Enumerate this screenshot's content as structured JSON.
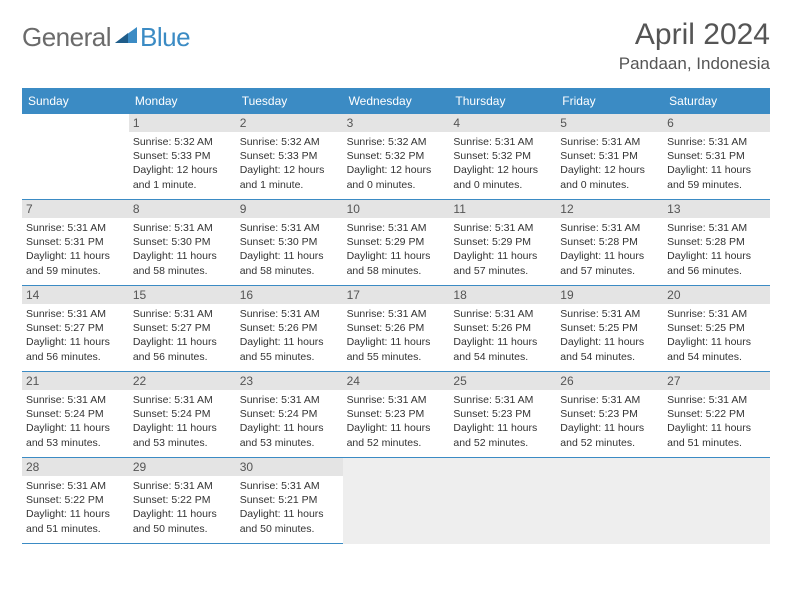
{
  "brand": {
    "text_general": "General",
    "text_blue": "Blue",
    "general_color": "#6b6b6b",
    "blue_color": "#3b8bc4",
    "triangle_color": "#3b8bc4"
  },
  "header": {
    "month_title": "April 2024",
    "location": "Pandaan, Indonesia",
    "title_color": "#555555"
  },
  "colors": {
    "header_bg": "#3b8bc4",
    "header_fg": "#ffffff",
    "daynum_bg": "#e4e4e4",
    "daynum_fg": "#555555",
    "border": "#3b8bc4",
    "blank_bottom_bg": "#eeeeee",
    "body_bg": "#ffffff",
    "text": "#333333"
  },
  "days_of_week": [
    "Sunday",
    "Monday",
    "Tuesday",
    "Wednesday",
    "Thursday",
    "Friday",
    "Saturday"
  ],
  "grid": {
    "leading_blanks": 1,
    "trailing_blanks": 4,
    "rows": 5,
    "cols": 7
  },
  "days": [
    {
      "n": "1",
      "sunrise": "Sunrise: 5:32 AM",
      "sunset": "Sunset: 5:33 PM",
      "daylight": "Daylight: 12 hours and 1 minute."
    },
    {
      "n": "2",
      "sunrise": "Sunrise: 5:32 AM",
      "sunset": "Sunset: 5:33 PM",
      "daylight": "Daylight: 12 hours and 1 minute."
    },
    {
      "n": "3",
      "sunrise": "Sunrise: 5:32 AM",
      "sunset": "Sunset: 5:32 PM",
      "daylight": "Daylight: 12 hours and 0 minutes."
    },
    {
      "n": "4",
      "sunrise": "Sunrise: 5:31 AM",
      "sunset": "Sunset: 5:32 PM",
      "daylight": "Daylight: 12 hours and 0 minutes."
    },
    {
      "n": "5",
      "sunrise": "Sunrise: 5:31 AM",
      "sunset": "Sunset: 5:31 PM",
      "daylight": "Daylight: 12 hours and 0 minutes."
    },
    {
      "n": "6",
      "sunrise": "Sunrise: 5:31 AM",
      "sunset": "Sunset: 5:31 PM",
      "daylight": "Daylight: 11 hours and 59 minutes."
    },
    {
      "n": "7",
      "sunrise": "Sunrise: 5:31 AM",
      "sunset": "Sunset: 5:31 PM",
      "daylight": "Daylight: 11 hours and 59 minutes."
    },
    {
      "n": "8",
      "sunrise": "Sunrise: 5:31 AM",
      "sunset": "Sunset: 5:30 PM",
      "daylight": "Daylight: 11 hours and 58 minutes."
    },
    {
      "n": "9",
      "sunrise": "Sunrise: 5:31 AM",
      "sunset": "Sunset: 5:30 PM",
      "daylight": "Daylight: 11 hours and 58 minutes."
    },
    {
      "n": "10",
      "sunrise": "Sunrise: 5:31 AM",
      "sunset": "Sunset: 5:29 PM",
      "daylight": "Daylight: 11 hours and 58 minutes."
    },
    {
      "n": "11",
      "sunrise": "Sunrise: 5:31 AM",
      "sunset": "Sunset: 5:29 PM",
      "daylight": "Daylight: 11 hours and 57 minutes."
    },
    {
      "n": "12",
      "sunrise": "Sunrise: 5:31 AM",
      "sunset": "Sunset: 5:28 PM",
      "daylight": "Daylight: 11 hours and 57 minutes."
    },
    {
      "n": "13",
      "sunrise": "Sunrise: 5:31 AM",
      "sunset": "Sunset: 5:28 PM",
      "daylight": "Daylight: 11 hours and 56 minutes."
    },
    {
      "n": "14",
      "sunrise": "Sunrise: 5:31 AM",
      "sunset": "Sunset: 5:27 PM",
      "daylight": "Daylight: 11 hours and 56 minutes."
    },
    {
      "n": "15",
      "sunrise": "Sunrise: 5:31 AM",
      "sunset": "Sunset: 5:27 PM",
      "daylight": "Daylight: 11 hours and 56 minutes."
    },
    {
      "n": "16",
      "sunrise": "Sunrise: 5:31 AM",
      "sunset": "Sunset: 5:26 PM",
      "daylight": "Daylight: 11 hours and 55 minutes."
    },
    {
      "n": "17",
      "sunrise": "Sunrise: 5:31 AM",
      "sunset": "Sunset: 5:26 PM",
      "daylight": "Daylight: 11 hours and 55 minutes."
    },
    {
      "n": "18",
      "sunrise": "Sunrise: 5:31 AM",
      "sunset": "Sunset: 5:26 PM",
      "daylight": "Daylight: 11 hours and 54 minutes."
    },
    {
      "n": "19",
      "sunrise": "Sunrise: 5:31 AM",
      "sunset": "Sunset: 5:25 PM",
      "daylight": "Daylight: 11 hours and 54 minutes."
    },
    {
      "n": "20",
      "sunrise": "Sunrise: 5:31 AM",
      "sunset": "Sunset: 5:25 PM",
      "daylight": "Daylight: 11 hours and 54 minutes."
    },
    {
      "n": "21",
      "sunrise": "Sunrise: 5:31 AM",
      "sunset": "Sunset: 5:24 PM",
      "daylight": "Daylight: 11 hours and 53 minutes."
    },
    {
      "n": "22",
      "sunrise": "Sunrise: 5:31 AM",
      "sunset": "Sunset: 5:24 PM",
      "daylight": "Daylight: 11 hours and 53 minutes."
    },
    {
      "n": "23",
      "sunrise": "Sunrise: 5:31 AM",
      "sunset": "Sunset: 5:24 PM",
      "daylight": "Daylight: 11 hours and 53 minutes."
    },
    {
      "n": "24",
      "sunrise": "Sunrise: 5:31 AM",
      "sunset": "Sunset: 5:23 PM",
      "daylight": "Daylight: 11 hours and 52 minutes."
    },
    {
      "n": "25",
      "sunrise": "Sunrise: 5:31 AM",
      "sunset": "Sunset: 5:23 PM",
      "daylight": "Daylight: 11 hours and 52 minutes."
    },
    {
      "n": "26",
      "sunrise": "Sunrise: 5:31 AM",
      "sunset": "Sunset: 5:23 PM",
      "daylight": "Daylight: 11 hours and 52 minutes."
    },
    {
      "n": "27",
      "sunrise": "Sunrise: 5:31 AM",
      "sunset": "Sunset: 5:22 PM",
      "daylight": "Daylight: 11 hours and 51 minutes."
    },
    {
      "n": "28",
      "sunrise": "Sunrise: 5:31 AM",
      "sunset": "Sunset: 5:22 PM",
      "daylight": "Daylight: 11 hours and 51 minutes."
    },
    {
      "n": "29",
      "sunrise": "Sunrise: 5:31 AM",
      "sunset": "Sunset: 5:22 PM",
      "daylight": "Daylight: 11 hours and 50 minutes."
    },
    {
      "n": "30",
      "sunrise": "Sunrise: 5:31 AM",
      "sunset": "Sunset: 5:21 PM",
      "daylight": "Daylight: 11 hours and 50 minutes."
    }
  ]
}
